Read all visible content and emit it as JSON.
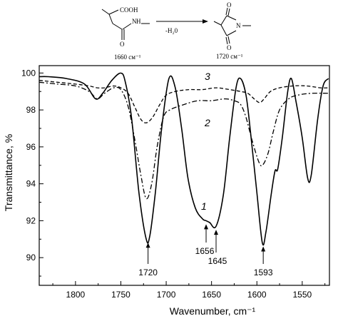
{
  "chart_data": {
    "type": "line",
    "xlabel": "Wavenumber, cm⁻¹",
    "ylabel": "Transmittance, %",
    "xlim": [
      1520,
      1840
    ],
    "ylim": [
      88.5,
      100.4
    ],
    "x_reversed": true,
    "x_ticks": [
      1800,
      1750,
      1700,
      1650,
      1600,
      1550
    ],
    "y_ticks": [
      90,
      92,
      94,
      96,
      98,
      100
    ],
    "series": [
      {
        "name": "1",
        "style": "solid",
        "points": [
          [
            1840,
            99.8
          ],
          [
            1830,
            99.8
          ],
          [
            1810,
            99.7
          ],
          [
            1790,
            99.4
          ],
          [
            1778,
            98.6
          ],
          [
            1770,
            98.9
          ],
          [
            1760,
            99.6
          ],
          [
            1750,
            100.0
          ],
          [
            1745,
            99.5
          ],
          [
            1738,
            97.5
          ],
          [
            1730,
            93.5
          ],
          [
            1722,
            91.0
          ],
          [
            1718,
            91.2
          ],
          [
            1712,
            93.5
          ],
          [
            1705,
            97.0
          ],
          [
            1697,
            99.7
          ],
          [
            1690,
            99.2
          ],
          [
            1683,
            97.0
          ],
          [
            1676,
            94.3
          ],
          [
            1668,
            92.7
          ],
          [
            1660,
            92.1
          ],
          [
            1656,
            92.0
          ],
          [
            1652,
            91.9
          ],
          [
            1645,
            91.7
          ],
          [
            1637,
            93.4
          ],
          [
            1630,
            96.5
          ],
          [
            1623,
            99.2
          ],
          [
            1618,
            99.7
          ],
          [
            1612,
            98.8
          ],
          [
            1607,
            96.8
          ],
          [
            1600,
            93.5
          ],
          [
            1594,
            90.8
          ],
          [
            1590,
            91.4
          ],
          [
            1584,
            93.5
          ],
          [
            1580,
            94.7
          ],
          [
            1577,
            94.8
          ],
          [
            1572,
            96.5
          ],
          [
            1566,
            99.0
          ],
          [
            1562,
            99.7
          ],
          [
            1557,
            98.5
          ],
          [
            1550,
            96.5
          ],
          [
            1544,
            94.3
          ],
          [
            1540,
            94.5
          ],
          [
            1533,
            97.5
          ],
          [
            1527,
            99.3
          ],
          [
            1521,
            99.7
          ]
        ]
      },
      {
        "name": "2",
        "style": "dash-dot",
        "points": [
          [
            1840,
            99.5
          ],
          [
            1820,
            99.4
          ],
          [
            1800,
            99.3
          ],
          [
            1785,
            99.0
          ],
          [
            1776,
            98.6
          ],
          [
            1768,
            98.9
          ],
          [
            1758,
            99.2
          ],
          [
            1750,
            99.1
          ],
          [
            1742,
            98.2
          ],
          [
            1735,
            96.5
          ],
          [
            1728,
            94.5
          ],
          [
            1722,
            93.2
          ],
          [
            1716,
            94.0
          ],
          [
            1710,
            96.0
          ],
          [
            1703,
            97.6
          ],
          [
            1696,
            98.0
          ],
          [
            1680,
            98.3
          ],
          [
            1665,
            98.5
          ],
          [
            1650,
            98.5
          ],
          [
            1635,
            98.6
          ],
          [
            1625,
            98.5
          ],
          [
            1618,
            98.3
          ],
          [
            1612,
            97.6
          ],
          [
            1605,
            96.3
          ],
          [
            1598,
            95.2
          ],
          [
            1594,
            95.0
          ],
          [
            1588,
            95.6
          ],
          [
            1582,
            96.8
          ],
          [
            1575,
            98.0
          ],
          [
            1565,
            98.6
          ],
          [
            1555,
            98.8
          ],
          [
            1540,
            98.9
          ],
          [
            1520,
            98.9
          ]
        ]
      },
      {
        "name": "3",
        "style": "dash",
        "points": [
          [
            1840,
            99.6
          ],
          [
            1820,
            99.5
          ],
          [
            1800,
            99.4
          ],
          [
            1785,
            99.3
          ],
          [
            1776,
            99.2
          ],
          [
            1768,
            99.2
          ],
          [
            1758,
            99.3
          ],
          [
            1750,
            99.2
          ],
          [
            1742,
            98.9
          ],
          [
            1735,
            98.2
          ],
          [
            1728,
            97.5
          ],
          [
            1722,
            97.3
          ],
          [
            1715,
            97.6
          ],
          [
            1707,
            98.3
          ],
          [
            1700,
            98.8
          ],
          [
            1690,
            99.0
          ],
          [
            1675,
            99.1
          ],
          [
            1660,
            99.1
          ],
          [
            1645,
            99.2
          ],
          [
            1630,
            99.1
          ],
          [
            1618,
            99.0
          ],
          [
            1610,
            98.9
          ],
          [
            1603,
            98.6
          ],
          [
            1597,
            98.4
          ],
          [
            1592,
            98.6
          ],
          [
            1585,
            99.0
          ],
          [
            1575,
            99.2
          ],
          [
            1560,
            99.3
          ],
          [
            1545,
            99.3
          ],
          [
            1530,
            99.2
          ],
          [
            1520,
            99.2
          ]
        ]
      }
    ],
    "annotations": [
      {
        "text": "1720",
        "x": 1720,
        "y": 91.0
      },
      {
        "text": "1656",
        "x": 1656,
        "y": 92.0
      },
      {
        "text": "1645",
        "x": 1645,
        "y": 91.7
      },
      {
        "text": "1593",
        "x": 1593,
        "y": 90.8
      }
    ]
  },
  "reaction": {
    "left": {
      "cooh": "COOH",
      "nh": "N",
      "h": "H",
      "o": "O",
      "caption": "1660 см⁻¹"
    },
    "conditions": "-H₂0",
    "right": {
      "n": "N",
      "o_top": "O",
      "o_bottom": "O",
      "caption": "1720 см⁻¹"
    }
  }
}
